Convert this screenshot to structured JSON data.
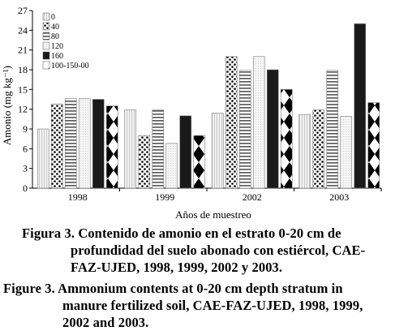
{
  "chart_data": {
    "type": "bar",
    "categories": [
      "1998",
      "1999",
      "2002",
      "2003"
    ],
    "series": [
      {
        "name": "0",
        "values": [
          9,
          11.9,
          11.4,
          11.2
        ]
      },
      {
        "name": "40",
        "values": [
          12.8,
          8,
          20,
          11.9
        ]
      },
      {
        "name": "80",
        "values": [
          13.6,
          11.9,
          17.9,
          17.9
        ]
      },
      {
        "name": "120",
        "values": [
          13.6,
          6.8,
          20,
          10.9
        ]
      },
      {
        "name": "160",
        "values": [
          13.5,
          11,
          18,
          25
        ]
      },
      {
        "name": "100-150-00",
        "values": [
          12.5,
          8,
          15,
          13
        ]
      }
    ],
    "xlabel": "Años de muestreo",
    "ylabel": "Amonio (mg kg⁻¹)",
    "ylim": [
      0,
      27
    ],
    "yticks": [
      0,
      3,
      6,
      9,
      12,
      15,
      18,
      21,
      24,
      27
    ],
    "grid": false,
    "legend_position": "top-left"
  },
  "captions": {
    "fig_es": {
      "label": "Figura 3.",
      "line1": "Contenido de amonio en el estrato 0-20 cm de",
      "line2": "profundidad del suelo abonado con estiércol, CAE-",
      "line3": "FAZ-UJED, 1998, 1999, 2002 y 2003."
    },
    "fig_en": {
      "label": "Figure 3.",
      "line1": "Ammonium contents at 0-20 cm depth stratum in",
      "line2": "manure fertilized soil, CAE-FAZ-UJED, 1998, 1999,",
      "line3": "2002 and 2003."
    }
  }
}
